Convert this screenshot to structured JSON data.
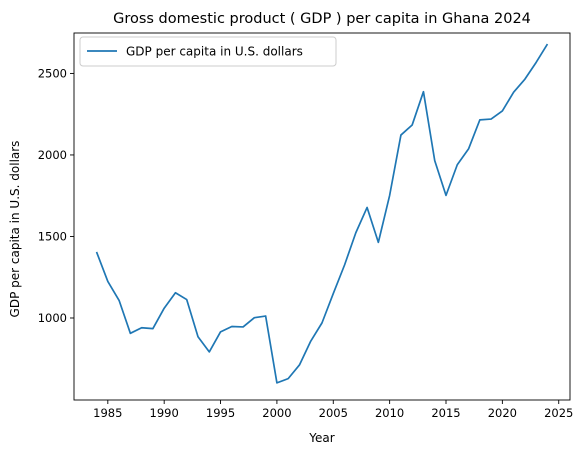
{
  "chart_data": {
    "type": "line",
    "title": "Gross domestic product ( GDP ) per capita in Ghana 2024",
    "xlabel": "Year",
    "ylabel": "GDP per capita in U.S. dollars",
    "xlim": [
      1982,
      2026
    ],
    "ylim": [
      497,
      2748
    ],
    "xticks": [
      1985,
      1990,
      1995,
      2000,
      2005,
      2010,
      2015,
      2020,
      2025
    ],
    "yticks": [
      1000,
      1500,
      2000,
      2500
    ],
    "grid": false,
    "legend_position": "top-left",
    "series": [
      {
        "name": "GDP per capita in U.S. dollars",
        "color": "#1f77b4",
        "x": [
          1984,
          1985,
          1986,
          1987,
          1988,
          1989,
          1990,
          1991,
          1992,
          1993,
          1994,
          1995,
          1996,
          1997,
          1998,
          1999,
          2000,
          2001,
          2002,
          2003,
          2004,
          2005,
          2006,
          2007,
          2008,
          2009,
          2010,
          2011,
          2012,
          2013,
          2014,
          2015,
          2016,
          2017,
          2018,
          2019,
          2020,
          2021,
          2022,
          2023,
          2024
        ],
        "y": [
          1405,
          1224,
          1108,
          906,
          940,
          935,
          1060,
          1155,
          1113,
          885,
          792,
          915,
          948,
          945,
          1002,
          1012,
          602,
          628,
          712,
          858,
          970,
          1150,
          1325,
          1523,
          1678,
          1464,
          1752,
          2122,
          2184,
          2388,
          1965,
          1752,
          1940,
          2037,
          2215,
          2220,
          2270,
          2385,
          2465,
          2568,
          2680
        ]
      }
    ]
  }
}
